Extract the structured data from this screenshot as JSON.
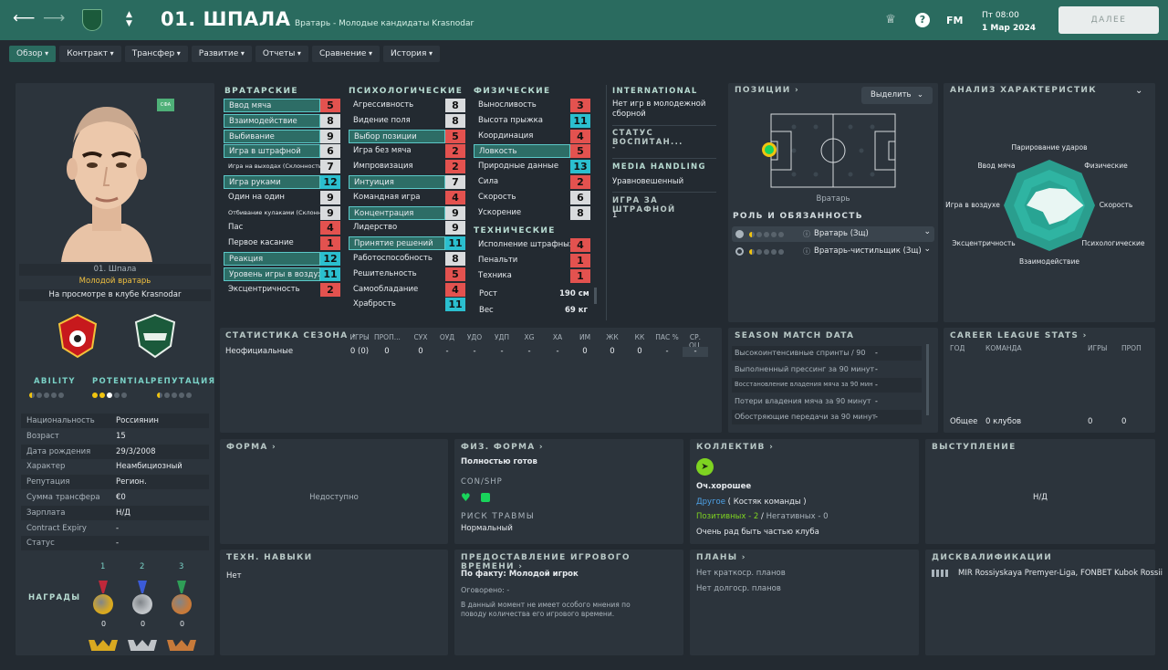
{
  "header": {
    "title": "01. ШПАЛА",
    "subtitle": "Вратарь - Молодые кандидаты Krasnodar",
    "fm": "FM",
    "day_time": "Пт 08:00",
    "date": "1 Мар 2024",
    "continue_label": "ДАЛЕЕ"
  },
  "tabs": [
    "Обзор",
    "Контракт",
    "Трансфер",
    "Развитие",
    "Отчеты",
    "Сравнение",
    "История"
  ],
  "profile": {
    "badge": "СФА",
    "name": "01. Шпала",
    "role": "Молодой вратарь",
    "status": "На просмотре в клубе Krasnodar",
    "labels": {
      "ability": "ABILITY",
      "potential": "POTENTIAL",
      "reputation": "РЕПУТАЦИЯ"
    },
    "ability_level": 0.5,
    "potential_level": 2.5,
    "reputation_level": 0.5,
    "info": [
      [
        "Национальность",
        "Россиянин"
      ],
      [
        "Возраст",
        "15"
      ],
      [
        "Дата рождения",
        "29/3/2008"
      ],
      [
        "Характер",
        "Неамбициозный"
      ],
      [
        "Репутация",
        "Регион."
      ],
      [
        "Сумма трансфера",
        "€0"
      ],
      [
        "Зарплата",
        "Н/Д"
      ],
      [
        "Contract Expiry",
        "-"
      ],
      [
        "Статус",
        "-"
      ]
    ],
    "awards_label": "НАГРАДЫ",
    "awards": [
      {
        "place": "1",
        "count": "0"
      },
      {
        "place": "2",
        "count": "0"
      },
      {
        "place": "3",
        "count": "0"
      }
    ]
  },
  "attributes": {
    "goalkeeping": {
      "title": "ВРАТАРСКИЕ",
      "items": [
        [
          "Ввод мяча",
          "5",
          "r",
          1
        ],
        [
          "Взаимодействие",
          "8",
          "g",
          1
        ],
        [
          "Выбивание",
          "9",
          "g",
          1
        ],
        [
          "Игра в штрафной",
          "6",
          "g",
          1
        ],
        [
          "Игра на выходах (Склонность)",
          "7",
          "g",
          0
        ],
        [
          "Игра руками",
          "12",
          "c",
          1
        ],
        [
          "Один на один",
          "9",
          "g",
          0
        ],
        [
          "Отбивание кулаками (Склонность)",
          "9",
          "g",
          0
        ],
        [
          "Пас",
          "4",
          "r",
          0
        ],
        [
          "Первое касание",
          "1",
          "r",
          0
        ],
        [
          "Реакция",
          "12",
          "c",
          1
        ],
        [
          "Уровень игры в воздухе",
          "11",
          "c",
          1
        ],
        [
          "Эксцентричность",
          "2",
          "r",
          0
        ]
      ]
    },
    "mental": {
      "title": "ПСИХОЛОГИЧЕСКИЕ",
      "items": [
        [
          "Агрессивность",
          "8",
          "g",
          0
        ],
        [
          "Видение поля",
          "8",
          "g",
          0
        ],
        [
          "Выбор позиции",
          "5",
          "r",
          1
        ],
        [
          "Игра без мяча",
          "2",
          "r",
          0
        ],
        [
          "Импровизация",
          "2",
          "r",
          0
        ],
        [
          "Интуиция",
          "7",
          "g",
          1
        ],
        [
          "Командная игра",
          "4",
          "r",
          0
        ],
        [
          "Концентрация",
          "9",
          "g",
          1
        ],
        [
          "Лидерство",
          "9",
          "g",
          0
        ],
        [
          "Принятие решений",
          "11",
          "c",
          1
        ],
        [
          "Работоспособность",
          "8",
          "g",
          0
        ],
        [
          "Решительность",
          "5",
          "r",
          0
        ],
        [
          "Самообладание",
          "4",
          "r",
          0
        ],
        [
          "Храбрость",
          "11",
          "c",
          0
        ]
      ]
    },
    "physical": {
      "title": "ФИЗИЧЕСКИЕ",
      "items": [
        [
          "Выносливость",
          "3",
          "r",
          0
        ],
        [
          "Высота прыжка",
          "11",
          "c",
          0
        ],
        [
          "Координация",
          "4",
          "r",
          0
        ],
        [
          "Ловкость",
          "5",
          "r",
          1
        ],
        [
          "Природные данные",
          "13",
          "c",
          0
        ],
        [
          "Сила",
          "2",
          "r",
          0
        ],
        [
          "Скорость",
          "6",
          "g",
          0
        ],
        [
          "Ускорение",
          "8",
          "g",
          0
        ]
      ]
    },
    "technical": {
      "title": "ТЕХНИЧЕСКИЕ",
      "items": [
        [
          "Исполнение штрафных",
          "4",
          "r",
          0
        ],
        [
          "Пенальти",
          "1",
          "r",
          0
        ],
        [
          "Техника",
          "1",
          "r",
          0
        ]
      ]
    },
    "height_label": "Рост",
    "height": "190 см",
    "weight_label": "Вес",
    "weight": "69 кг"
  },
  "international": {
    "title": "INTERNATIONAL",
    "text": "Нет игр в молодежной сборной",
    "status_title": "СТАТУС ВОСПИТАН...",
    "status_val": "-",
    "media_title": "MEDIA HANDLING",
    "media_val": "Уравновешенный",
    "pen_title": "ИГРА ЗА ШТРАФНОЙ",
    "pen_val": "1"
  },
  "positions": {
    "title": "ПОЗИЦИИ",
    "select_label": "Выделить",
    "pos_label": "Вратарь",
    "roles_title": "РОЛЬ И ОБЯЗАННОСТЬ",
    "roles": [
      {
        "name": "Вратарь (Зщ)",
        "stars": 0.5
      },
      {
        "name": "Вратарь-чистильщик (Зщ)",
        "stars": 0.5
      }
    ]
  },
  "analysis": {
    "title": "АНАЛИЗ ХАРАКТЕРИСТИК",
    "labels": [
      "Парирование ударов",
      "Физические",
      "Скорость",
      "Психологические",
      "Взаимодействие",
      "Эксцентричность",
      "Игра в воздухе",
      "Ввод мяча"
    ],
    "values": [
      0.38,
      0.5,
      0.75,
      0.45,
      0.42,
      0.2,
      0.5,
      0.42
    ]
  },
  "season": {
    "title": "СТАТИСТИКА СЕЗОНА",
    "cols": [
      "ИГРЫ",
      "ПРОП...",
      "СУХ",
      "ОУД",
      "УДО",
      "УДП",
      "XG",
      "XA",
      "ИМ",
      "ЖК",
      "КК",
      "ПАС %",
      "СР. ОЦ."
    ],
    "row_label": "Неофициальные",
    "row": [
      "0 (0)",
      "0",
      "0",
      "-",
      "-",
      "-",
      "-",
      "-",
      "0",
      "0",
      "0",
      "-",
      "-"
    ]
  },
  "match": {
    "title": "SEASON MATCH DATA",
    "rows": [
      [
        "Высокоинтенсивные спринты / 90",
        "-"
      ],
      [
        "Выполненный прессинг за 90 минут",
        "-"
      ],
      [
        "Восстановление владения мяча за 90 мин",
        "-"
      ],
      [
        "Потери владения мяча за 90 минут",
        "-"
      ],
      [
        "Обостряющие передачи за 90 минут",
        "-"
      ]
    ]
  },
  "career": {
    "title": "CAREER LEAGUE STATS",
    "cols": [
      "ГОД",
      "КОМАНДА",
      "ИГРЫ",
      "ПРОП"
    ],
    "row": [
      "Общее",
      "0 клубов",
      "0",
      "0"
    ]
  },
  "form": {
    "title": "ФОРМА",
    "text": "Недоступно"
  },
  "fitness": {
    "title": "ФИЗ. ФОРМА",
    "status": "Полностью готов",
    "conshp": "CON/SHP",
    "injury_title": "РИСК ТРАВМЫ",
    "injury_val": "Нормальный"
  },
  "squad": {
    "title": "КОЛЛЕКТИВ",
    "rating": "Оч.хорошее",
    "group": "Другое",
    "group_detail": "( Костяк команды )",
    "pos": "Позитивных - 2",
    "sep": "/",
    "neg": "Негативных - 0",
    "quote": "Очень рад быть частью клуба"
  },
  "perf": {
    "title": "ВЫСТУПЛЕНИЕ",
    "text": "Н/Д"
  },
  "skills": {
    "title": "ТЕХН. НАВЫКИ",
    "text": "Нет"
  },
  "playtime": {
    "title": "ПРЕДОСТАВЛЕНИЕ ИГРОВОГО ВРЕМЕНИ",
    "fact_label": "По факту:",
    "fact_val": "Молодой игрок",
    "agreed": "Оговорено: -",
    "note": "В данный момент не имеет особого мнения по поводу количества его игрового времени."
  },
  "plans": {
    "title": "ПЛАНЫ",
    "short": "Нет краткоср. планов",
    "long": "Нет долгоср. планов"
  },
  "discipline": {
    "title": "ДИСКВАЛИФИКАЦИИ",
    "text": "MIR Rossiyskaya Premyer-Liga, FONBET Kubok Rossii"
  },
  "colors": {
    "header": "#2a6b5f",
    "red": "#e3524f",
    "cyan": "#2bbfcf",
    "gray": "#d9dbdd"
  }
}
